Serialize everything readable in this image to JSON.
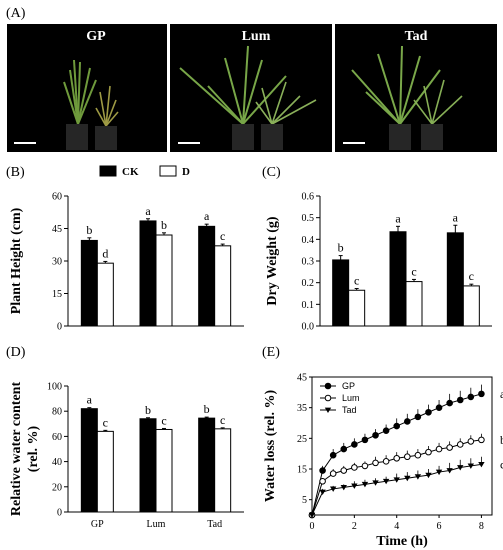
{
  "figure": {
    "panel_a": {
      "letter": "(A)",
      "photos": [
        {
          "label": "GP"
        },
        {
          "label": "Lum"
        },
        {
          "label": "Tad"
        }
      ]
    }
  },
  "chart_data": [
    {
      "panel": "(B)",
      "type": "bar",
      "ylabel": "Plant Height (cm)",
      "ylim": [
        0,
        60
      ],
      "yticks": [
        0,
        15,
        30,
        45,
        60
      ],
      "categories": [
        "GP",
        "Lum",
        "Tad"
      ],
      "legend": [
        "CK",
        "D"
      ],
      "series": [
        {
          "name": "CK",
          "values": [
            39.5,
            48.5,
            46
          ],
          "err": [
            1.2,
            1.0,
            1.0
          ],
          "letters": [
            "b",
            "a",
            "a"
          ]
        },
        {
          "name": "D",
          "values": [
            29,
            42,
            37
          ],
          "err": [
            0.8,
            1.0,
            0.8
          ],
          "letters": [
            "d",
            "b",
            "c"
          ]
        }
      ]
    },
    {
      "panel": "(C)",
      "type": "bar",
      "ylabel": "Dry Weight (g)",
      "ylim": [
        0,
        0.6
      ],
      "yticks": [
        "0.0",
        "0.1",
        "0.2",
        "0.3",
        "0.4",
        "0.5",
        "0.6"
      ],
      "categories": [
        "GP",
        "Lum",
        "Tad"
      ],
      "series": [
        {
          "name": "CK",
          "values": [
            0.305,
            0.435,
            0.43
          ],
          "err": [
            0.02,
            0.025,
            0.035
          ],
          "letters": [
            "b",
            "a",
            "a"
          ]
        },
        {
          "name": "D",
          "values": [
            0.165,
            0.205,
            0.185
          ],
          "err": [
            0.008,
            0.01,
            0.008
          ],
          "letters": [
            "c",
            "c",
            "c"
          ]
        }
      ]
    },
    {
      "panel": "(D)",
      "type": "bar",
      "ylabel": "Relative water content (rel. %)",
      "ylabel_lines": [
        "Relative water content",
        "(rel. %)"
      ],
      "ylim": [
        0,
        100
      ],
      "yticks": [
        0,
        20,
        40,
        60,
        80,
        100
      ],
      "categories": [
        "GP",
        "Lum",
        "Tad"
      ],
      "series": [
        {
          "name": "CK",
          "values": [
            82,
            74,
            74.5
          ],
          "err": [
            0.8,
            0.8,
            0.8
          ],
          "letters": [
            "a",
            "b",
            "b"
          ]
        },
        {
          "name": "D",
          "values": [
            64,
            65.5,
            66
          ],
          "err": [
            0.8,
            0.8,
            0.8
          ],
          "letters": [
            "c",
            "c",
            "c"
          ]
        }
      ]
    },
    {
      "panel": "(E)",
      "type": "line",
      "xlabel": "Time (h)",
      "ylabel": "Water loss (rel. %)",
      "xlim": [
        0,
        8.5
      ],
      "ylim": [
        0,
        45
      ],
      "xticks": [
        0,
        2,
        4,
        6,
        8
      ],
      "yticks": [
        5,
        15,
        25,
        35,
        45
      ],
      "legend_position": "top-left",
      "x": [
        0,
        0.5,
        1,
        1.5,
        2,
        2.5,
        3,
        3.5,
        4,
        4.5,
        5,
        5.5,
        6,
        6.5,
        7,
        7.5,
        8
      ],
      "series": [
        {
          "name": "GP",
          "marker": "filled-circle",
          "letter": "a",
          "values": [
            0,
            14.5,
            19.5,
            21.5,
            23,
            24.5,
            26,
            27.5,
            29,
            30.5,
            32,
            33.5,
            35,
            36.5,
            37.5,
            38.5,
            39.5
          ],
          "err": [
            0,
            1.5,
            2,
            2,
            2,
            2,
            2,
            2,
            2.5,
            2.5,
            2.5,
            2.5,
            2.5,
            3,
            3,
            3,
            3
          ]
        },
        {
          "name": "Lum",
          "marker": "open-circle",
          "letter": "b",
          "values": [
            0,
            11,
            13.5,
            14.5,
            15.5,
            16,
            17,
            17.5,
            18.5,
            19,
            19.5,
            20.5,
            21.5,
            22,
            23,
            24,
            24.5
          ],
          "err": [
            0,
            1,
            1.5,
            1.5,
            1.5,
            1.5,
            2,
            2,
            2,
            2,
            2,
            2,
            2,
            2,
            2,
            2,
            2
          ]
        },
        {
          "name": "Tad",
          "marker": "filled-triangle-down",
          "letter": "c",
          "values": [
            0,
            7.5,
            8.5,
            9,
            9.5,
            10,
            10.5,
            11,
            11.5,
            12,
            12.5,
            13,
            14,
            14.5,
            15.5,
            16,
            16.5
          ],
          "err": [
            0,
            1,
            1,
            1,
            1.5,
            1.5,
            1.5,
            1.5,
            2,
            2,
            2,
            2,
            2,
            2.5,
            2.5,
            2.5,
            2.5
          ]
        }
      ]
    }
  ]
}
